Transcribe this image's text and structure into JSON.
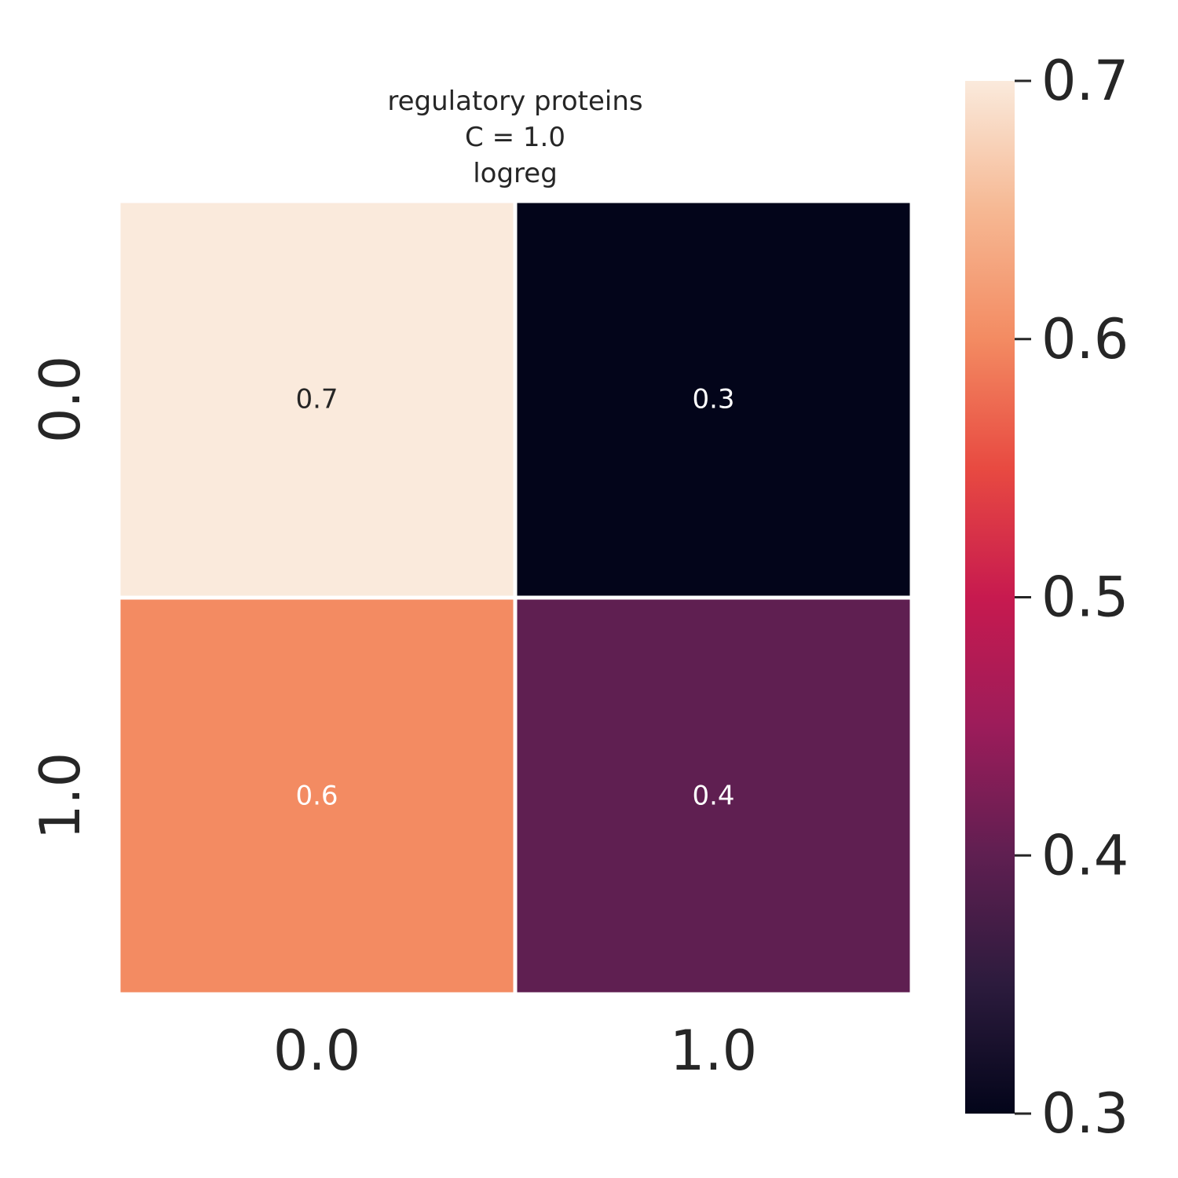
{
  "chart_data": {
    "type": "heatmap",
    "title_lines": [
      "regulatory proteins",
      "C = 1.0",
      "logreg"
    ],
    "x_categories": [
      "0.0",
      "1.0"
    ],
    "y_categories": [
      "0.0",
      "1.0"
    ],
    "values": [
      [
        0.7,
        0.3
      ],
      [
        0.6,
        0.4
      ]
    ],
    "cell_labels": [
      [
        "0.7",
        "0.3"
      ],
      [
        "0.6",
        "0.4"
      ]
    ],
    "colormap": "rocket",
    "cell_colors": [
      [
        "#faeadc",
        "#03051a"
      ],
      [
        "#f38b62",
        "#5f1f51"
      ]
    ],
    "label_colors": [
      [
        "#262626",
        "#ffffff"
      ],
      [
        "#ffffff",
        "#ffffff"
      ]
    ],
    "colorbar": {
      "range": [
        0.3,
        0.7
      ],
      "ticks": [
        "0.3",
        "0.4",
        "0.5",
        "0.6",
        "0.7"
      ],
      "gradient": [
        "#03051a",
        "#2c1b3d",
        "#5f1f51",
        "#9c1c5a",
        "#c71a4f",
        "#e84a41",
        "#f38b62",
        "#f6b893",
        "#faeadc"
      ]
    },
    "xlabel": "",
    "ylabel": "",
    "cell_border_color": "#ffffff"
  }
}
